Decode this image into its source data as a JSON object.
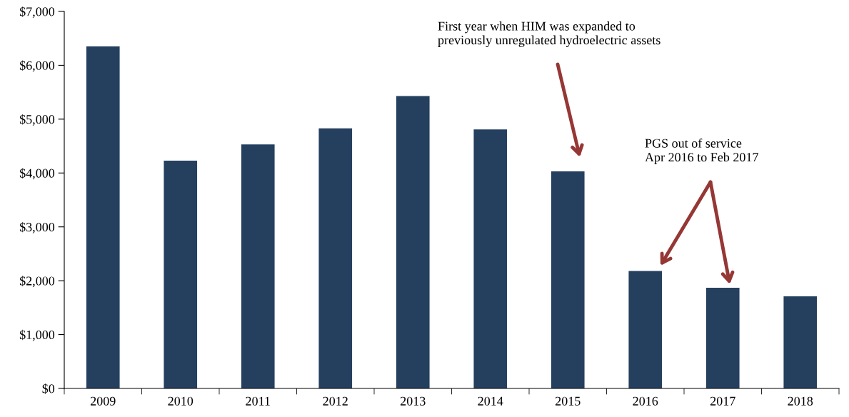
{
  "chart_data": {
    "type": "bar",
    "categories": [
      "2009",
      "2010",
      "2011",
      "2012",
      "2013",
      "2014",
      "2015",
      "2016",
      "2017",
      "2018"
    ],
    "values": [
      6350,
      4230,
      4530,
      4830,
      5430,
      4810,
      4030,
      2180,
      1870,
      1710
    ],
    "color": "#253f5f",
    "ylim": [
      0,
      7000
    ],
    "yticks": [
      {
        "value": 0,
        "label": "$0"
      },
      {
        "value": 1000,
        "label": "$1,000"
      },
      {
        "value": 2000,
        "label": "$2,000"
      },
      {
        "value": 3000,
        "label": "$3,000"
      },
      {
        "value": 4000,
        "label": "$4,000"
      },
      {
        "value": 5000,
        "label": "$5,000"
      },
      {
        "value": 6000,
        "label": "$6,000"
      },
      {
        "value": 7000,
        "label": "$7,000"
      }
    ],
    "grid": false,
    "annotations": [
      "First year when HIM was expanded to\npreviously unregulated hydroelectric assets",
      "PGS out of service\nApr 2016 to Feb 2017"
    ]
  }
}
